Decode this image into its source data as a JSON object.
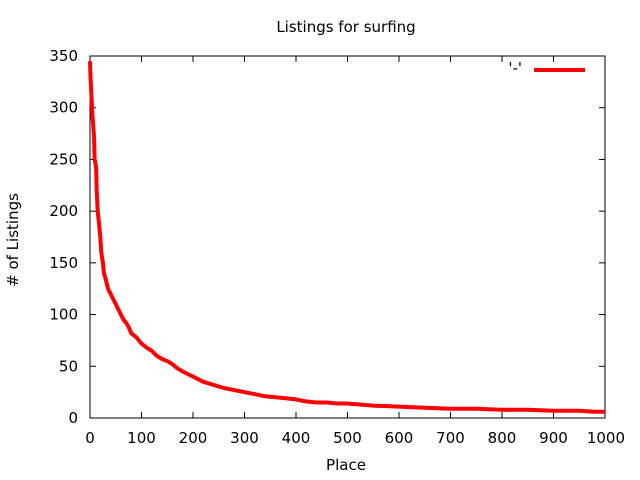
{
  "chart_data": {
    "type": "line",
    "title": "Listings for surfing",
    "xlabel": "Place",
    "ylabel": "# of Listings",
    "xlim": [
      0,
      1000
    ],
    "ylim": [
      0,
      350
    ],
    "xticks": [
      0,
      100,
      200,
      300,
      400,
      500,
      600,
      700,
      800,
      900,
      1000
    ],
    "yticks": [
      0,
      50,
      100,
      150,
      200,
      250,
      300,
      350
    ],
    "grid": false,
    "legend_position": "top-right",
    "series": [
      {
        "name": "'-'",
        "color": "#ff0000",
        "x": [
          0,
          1,
          2,
          3,
          4,
          5,
          6,
          8,
          9,
          10,
          11,
          12,
          13,
          15,
          17,
          20,
          22,
          25,
          27,
          30,
          35,
          40,
          45,
          50,
          55,
          60,
          65,
          70,
          75,
          80,
          85,
          90,
          100,
          110,
          120,
          130,
          140,
          150,
          160,
          170,
          180,
          200,
          220,
          240,
          260,
          280,
          300,
          320,
          340,
          360,
          380,
          400,
          420,
          440,
          460,
          480,
          500,
          550,
          600,
          650,
          700,
          750,
          800,
          850,
          900,
          950,
          980,
          1000
        ],
        "y": [
          345,
          330,
          320,
          310,
          300,
          290,
          285,
          270,
          250,
          248,
          245,
          240,
          220,
          200,
          190,
          175,
          160,
          150,
          140,
          135,
          125,
          120,
          115,
          110,
          105,
          100,
          95,
          92,
          88,
          82,
          80,
          78,
          72,
          68,
          65,
          60,
          57,
          55,
          52,
          48,
          45,
          40,
          35,
          32,
          29,
          27,
          25,
          23,
          21,
          20,
          19,
          18,
          16,
          15,
          15,
          14,
          14,
          12,
          11,
          10,
          9,
          9,
          8,
          8,
          7,
          7,
          6,
          6
        ]
      }
    ]
  }
}
